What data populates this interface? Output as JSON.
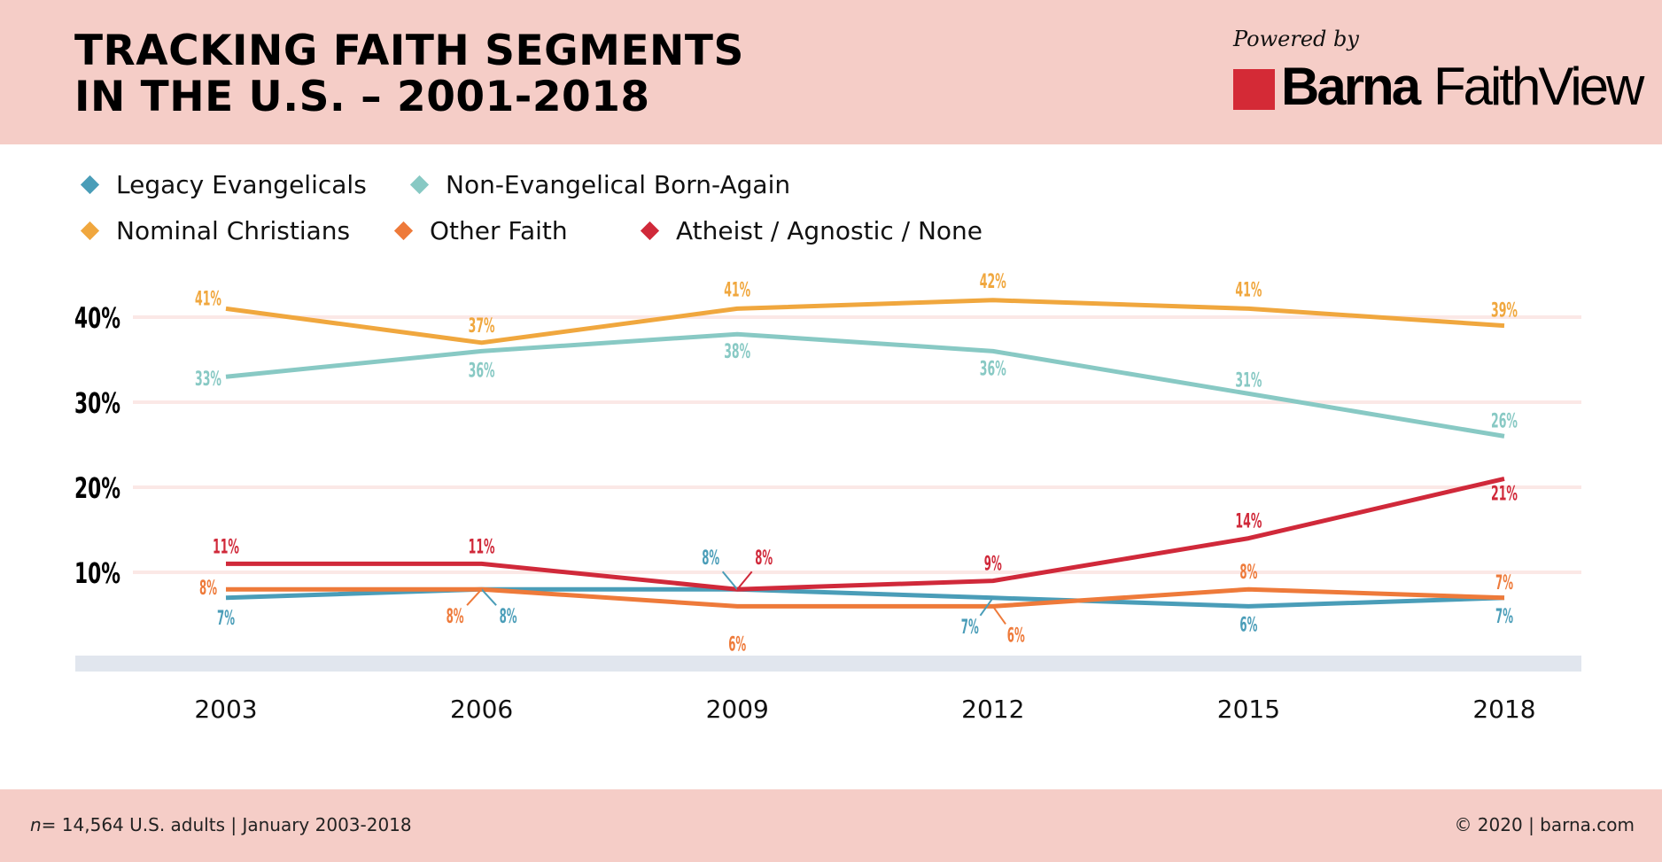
{
  "header": {
    "title_lines": [
      "TRACKING FAITH SEGMENTS",
      "IN THE U.S. – 2001-2018"
    ],
    "powered_by": "Powered by",
    "logo_brand": "Barna",
    "logo_product": "FaithView",
    "logo_color": "#d42a36"
  },
  "footer": {
    "sample_prefix": "n=",
    "sample_text": " 14,564 U.S. adults | January 2003-2018",
    "copyright": "© 2020 | barna.com"
  },
  "colors": {
    "header_bg": "#f5cdc7",
    "gridline": "#fbe8e6",
    "baseline_band": "#e1e6ee"
  },
  "chart_data": {
    "type": "line",
    "title": "TRACKING FAITH SEGMENTS IN THE U.S. – 2001-2018",
    "xlabel": "",
    "ylabel": "",
    "x": [
      "2003",
      "2006",
      "2009",
      "2012",
      "2015",
      "2018"
    ],
    "yticks": [
      10,
      20,
      30,
      40
    ],
    "ytick_labels": [
      "10%",
      "20%",
      "30%",
      "40%"
    ],
    "ylim": [
      0,
      48
    ],
    "grid": true,
    "legend_position": "top-left",
    "value_suffix": "%",
    "series": [
      {
        "name": "Legacy Evangelicals",
        "color": "#4a9db8",
        "values": [
          7,
          8,
          8,
          7,
          6,
          7
        ]
      },
      {
        "name": "Non-Evangelical Born-Again",
        "color": "#88c9c4",
        "values": [
          33,
          36,
          38,
          36,
          31,
          26
        ]
      },
      {
        "name": "Nominal Christians",
        "color": "#f0a73e",
        "values": [
          41,
          37,
          41,
          42,
          41,
          39
        ]
      },
      {
        "name": "Other Faith",
        "color": "#ee7a3a",
        "values": [
          8,
          8,
          6,
          6,
          8,
          7
        ]
      },
      {
        "name": "Atheist / Agnostic / None",
        "color": "#d0293a",
        "values": [
          11,
          11,
          8,
          9,
          14,
          21
        ]
      }
    ]
  }
}
